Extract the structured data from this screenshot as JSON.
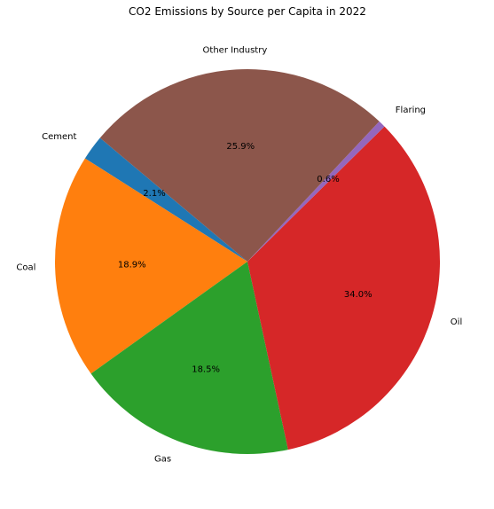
{
  "chart_data": {
    "type": "pie",
    "title": "CO2 Emissions by Source per Capita in 2022",
    "start_angle_deg": 140,
    "direction": "counterclockwise",
    "slices": [
      {
        "label": "Cement",
        "percent": 2.1,
        "percent_label": "2.1%",
        "color": "#1f77b4"
      },
      {
        "label": "Coal",
        "percent": 18.9,
        "percent_label": "18.9%",
        "color": "#ff7f0e"
      },
      {
        "label": "Gas",
        "percent": 18.5,
        "percent_label": "18.5%",
        "color": "#2ca02c"
      },
      {
        "label": "Oil",
        "percent": 34.0,
        "percent_label": "34.0%",
        "color": "#d62728"
      },
      {
        "label": "Flaring",
        "percent": 0.6,
        "percent_label": "0.6%",
        "color": "#9467bd"
      },
      {
        "label": "Other Industry",
        "percent": 25.9,
        "percent_label": "25.9%",
        "color": "#8c564b"
      }
    ]
  }
}
